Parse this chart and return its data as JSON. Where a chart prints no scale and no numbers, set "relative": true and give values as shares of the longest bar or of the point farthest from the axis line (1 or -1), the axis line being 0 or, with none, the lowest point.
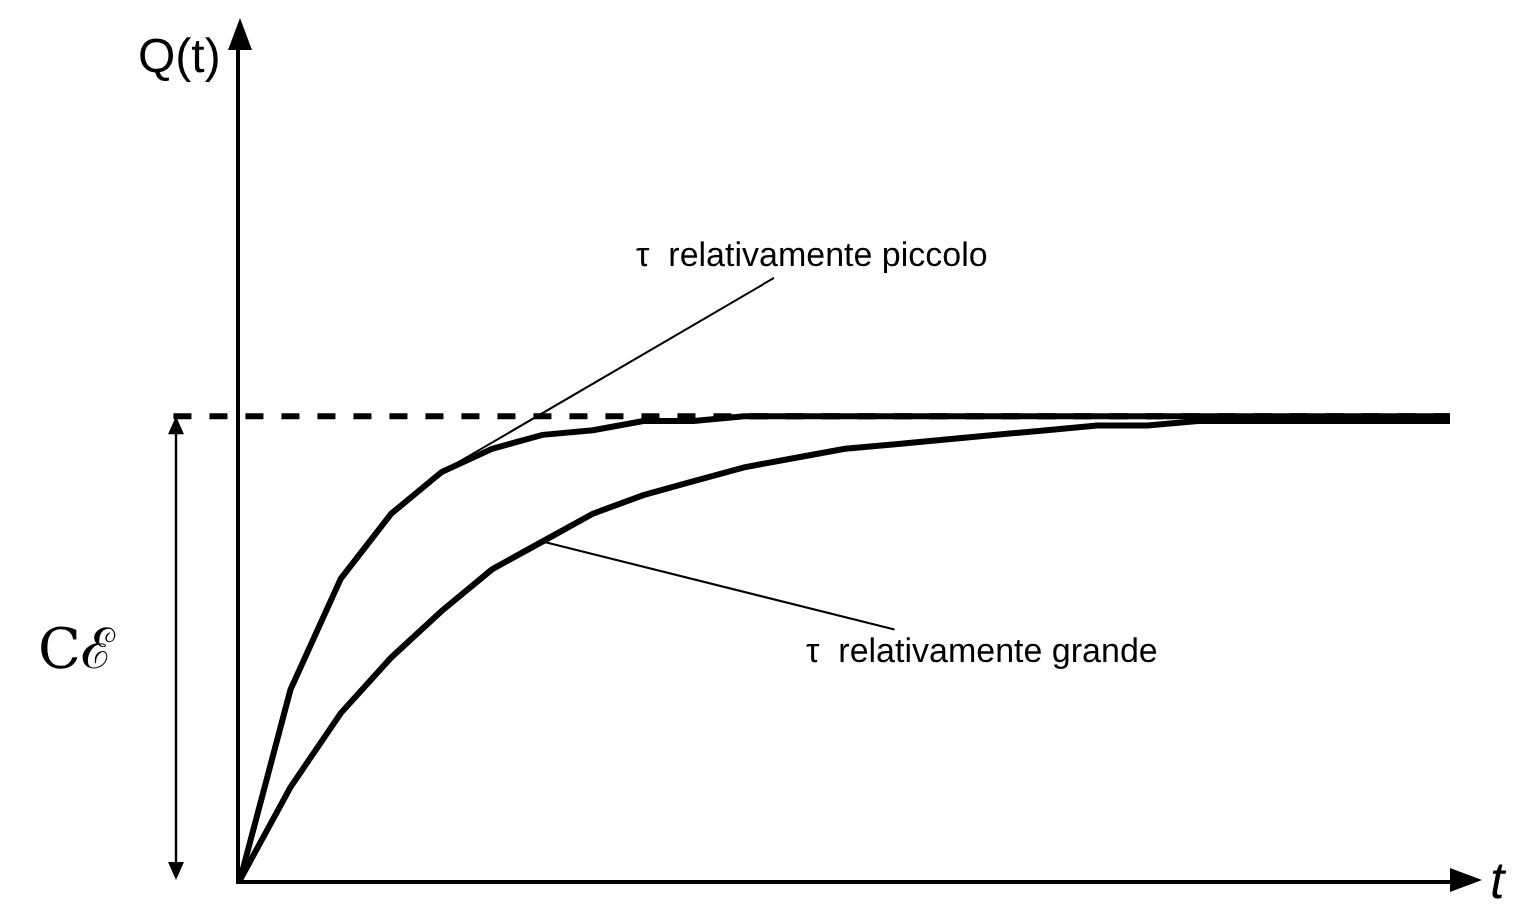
{
  "chart_data": {
    "type": "line",
    "relative": true,
    "xlabel": "t",
    "categories": [
      null,
      null,
      null,
      null,
      null,
      null,
      null,
      null,
      null,
      null,
      null,
      null,
      null,
      null,
      null,
      null,
      null,
      null,
      null,
      null,
      null,
      null,
      null,
      null,
      null
    ],
    "series": [
      {
        "color": "#000000",
        "values": [
          0,
          0.41,
          0.65,
          0.79,
          0.88,
          0.93,
          0.96,
          0.97,
          0.99,
          0.99,
          1,
          1,
          1,
          1,
          1,
          1,
          1,
          1,
          1,
          1,
          1,
          1,
          1,
          1,
          1
        ]
      },
      {
        "color": "#000000",
        "values": [
          0,
          0.2,
          0.36,
          0.48,
          0.58,
          0.67,
          0.73,
          0.79,
          0.83,
          0.86,
          0.89,
          0.91,
          0.93,
          0.94,
          0.95,
          0.96,
          0.97,
          0.98,
          0.98,
          0.99,
          0.99,
          0.99,
          0.99,
          0.99,
          0.99
        ]
      }
    ],
    "ref_lines": [
      {
        "axis": "y",
        "value": 1,
        "label": "Cℰ",
        "color": "#000000",
        "line_style": "dashed"
      }
    ],
    "annotations": [
      "τ  relativamente piccolo",
      "τ  relativamente grande",
      "Q(t)"
    ],
    "line_style": "solid",
    "marker": "none"
  }
}
